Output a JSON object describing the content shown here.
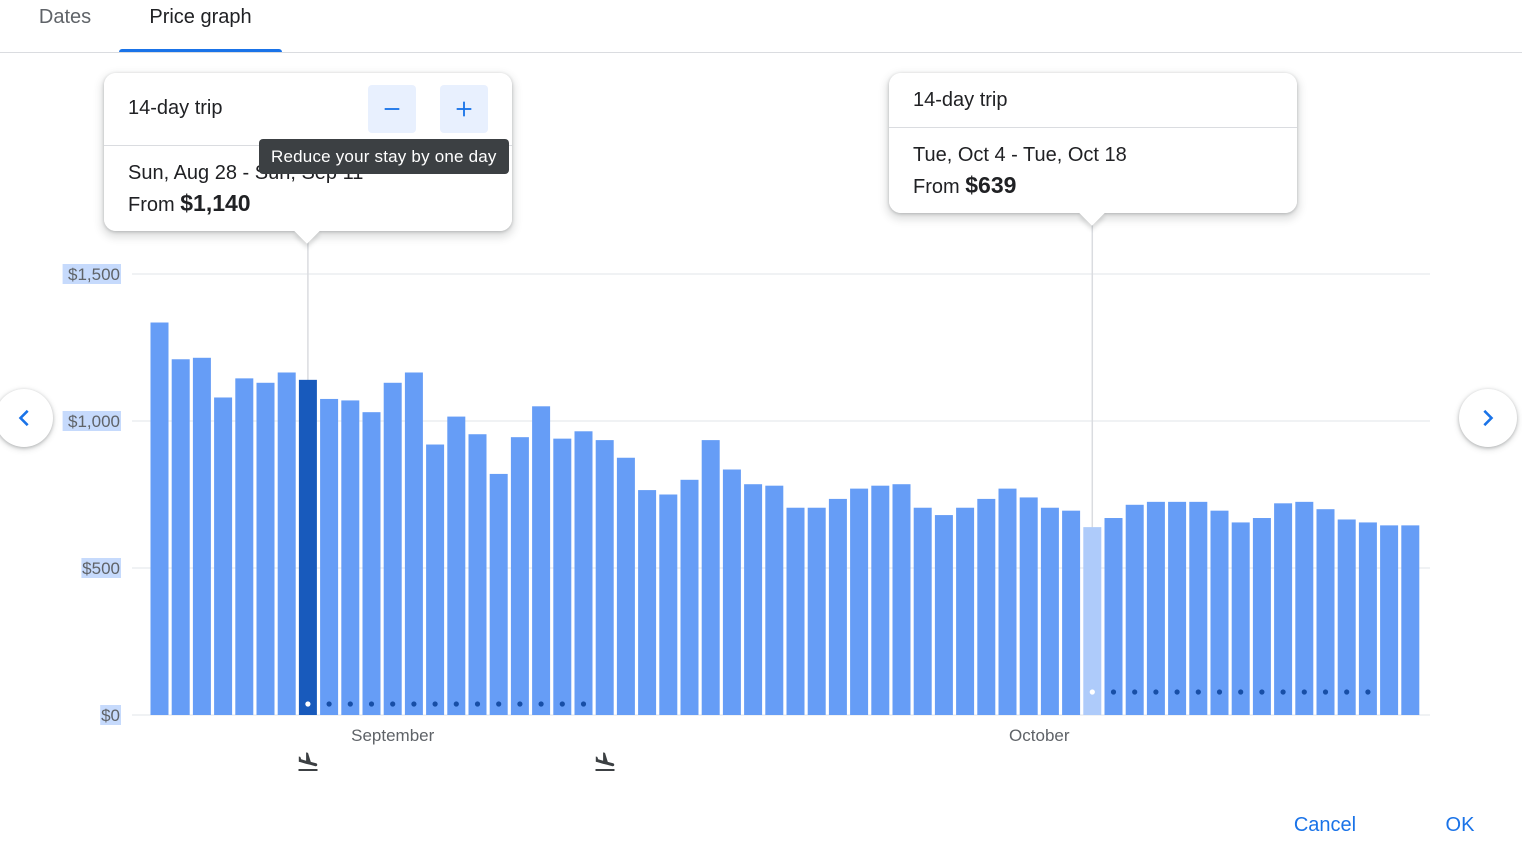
{
  "tabs": [
    {
      "label": "Dates",
      "active": false
    },
    {
      "label": "Price graph",
      "active": true
    }
  ],
  "tooltip": "Reduce your stay by one day",
  "card_left": {
    "title": "14-day trip",
    "dates": "Sun, Aug 28 - Sun, Sep 11",
    "price_prefix": "From",
    "price": "$1,140"
  },
  "card_right": {
    "title": "14-day trip",
    "dates": "Tue, Oct 4 - Tue, Oct 18",
    "price_prefix": "From",
    "price": "$639"
  },
  "icons": {
    "minus": "minus-icon",
    "plus": "plus-icon",
    "prev": "chevron-left-icon",
    "next": "chevron-right-icon",
    "landing": "plane-landing-icon"
  },
  "footer": {
    "cancel_label": "Cancel",
    "ok_label": "OK"
  },
  "colors": {
    "bar": "#669df6",
    "bar_selected": "#185abc",
    "bar_hover": "#aecbfa",
    "accent": "#1a73e8"
  },
  "chart_data": {
    "type": "bar",
    "ylim": [
      0,
      1500
    ],
    "yticks": [
      "$0",
      "$500",
      "$1,000",
      "$1,500"
    ],
    "ytick_values": [
      0,
      500,
      1000,
      1500
    ],
    "month_labels": [
      {
        "label": "September",
        "index": 11
      },
      {
        "label": "October",
        "index": 41.5
      }
    ],
    "values": [
      1335,
      1210,
      1215,
      1080,
      1145,
      1130,
      1165,
      1140,
      1075,
      1070,
      1030,
      1130,
      1165,
      920,
      1015,
      955,
      820,
      945,
      1050,
      940,
      965,
      935,
      875,
      765,
      750,
      800,
      935,
      835,
      785,
      780,
      705,
      705,
      735,
      770,
      780,
      785,
      705,
      680,
      705,
      735,
      770,
      740,
      705,
      695,
      639,
      670,
      715,
      725,
      725,
      725,
      695,
      655,
      670,
      720,
      725,
      700,
      665,
      655,
      645,
      645
    ],
    "selected_index": 7,
    "hover_index": 44,
    "selected_trip_dots": [
      7,
      21
    ],
    "hover_trip_dots": [
      44,
      58
    ],
    "landing_icon_indices": [
      7,
      21
    ]
  }
}
